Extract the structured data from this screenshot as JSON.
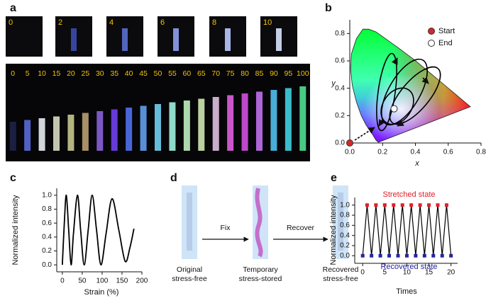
{
  "panels": {
    "labels": [
      "a",
      "b",
      "c",
      "d",
      "e"
    ],
    "a": {
      "top_labels": [
        "0",
        "2",
        "4",
        "6",
        "8",
        "10"
      ],
      "bottom_labels": [
        "0",
        "5",
        "10",
        "15",
        "20",
        "25",
        "30",
        "35",
        "40",
        "45",
        "50",
        "55",
        "60",
        "65",
        "70",
        "75",
        "80",
        "85",
        "90",
        "95",
        "100"
      ]
    },
    "d": {
      "arrows": [
        "Fix",
        "Recover"
      ],
      "captions": [
        [
          "Original",
          "stress-free"
        ],
        [
          "Temporary",
          "stress-stored"
        ],
        [
          "Recovered",
          "stress-free"
        ]
      ]
    }
  },
  "chart_data": [
    {
      "type": "scatter",
      "xlabel": "x",
      "ylabel": "y",
      "xlim": [
        0,
        0.8
      ],
      "ylim": [
        0,
        0.9
      ],
      "xticks": [
        {
          "value": 0,
          "label": "0.0"
        },
        0.2,
        0.4,
        0.6,
        0.8
      ],
      "yticks": [
        {
          "value": 0,
          "label": "0.0"
        },
        0.2,
        0.4,
        0.6,
        0.8
      ],
      "legend": "upper right",
      "series": [
        {
          "name": "Start",
          "color": "#d62728",
          "x": [
            0
          ],
          "values": [
            0
          ]
        },
        {
          "name": "End",
          "color": "#ffffff",
          "x": [
            0.27
          ],
          "values": [
            0.25
          ]
        }
      ]
    },
    {
      "type": "line",
      "xlabel": "Strain (%)",
      "ylabel": "Normalized intensity",
      "xlim": [
        -14,
        200
      ],
      "ylim": [
        -0.1,
        1.1
      ],
      "xticks": [
        0,
        50,
        100,
        150,
        200
      ],
      "yticks": [
        {
          "value": 0,
          "label": "0.0"
        },
        0.2,
        0.4,
        0.6,
        0.8,
        {
          "value": 1,
          "label": "1.0"
        }
      ],
      "color": "#000000",
      "x": [
        0,
        5,
        10,
        16,
        22,
        28,
        38,
        46,
        55,
        65,
        75,
        86,
        97,
        110,
        125,
        142,
        158,
        170,
        180
      ],
      "values": [
        0,
        0.6,
        1.0,
        0.5,
        0,
        0.45,
        1.0,
        0.5,
        0,
        0.5,
        1.0,
        0.5,
        0,
        0.45,
        0.95,
        0.5,
        0.05,
        0.25,
        0.52
      ]
    },
    {
      "type": "zigzag",
      "xlabel": "Times",
      "ylabel": "Normalized intensity",
      "xlim": [
        -1.8,
        21.5
      ],
      "ylim": [
        -0.15,
        1.15
      ],
      "xticks": [
        0,
        5,
        10,
        15,
        20
      ],
      "yticks": [
        {
          "value": 0,
          "label": "0.0"
        },
        0.2,
        0.4,
        0.6,
        0.8,
        {
          "value": 1,
          "label": "1.0"
        }
      ],
      "line_color": "#000000",
      "series": [
        {
          "name": "Stretched state",
          "color": "#e0202a",
          "x": [
            1,
            3,
            5,
            7,
            9,
            11,
            13,
            15,
            17,
            19
          ],
          "values": [
            1,
            1,
            1,
            1,
            1,
            1,
            1,
            1,
            1,
            1
          ]
        },
        {
          "name": "Recovered state",
          "color": "#26269a",
          "x": [
            0,
            2,
            4,
            6,
            8,
            10,
            12,
            14,
            16,
            18,
            20
          ],
          "values": [
            0,
            0,
            0,
            0,
            0,
            0,
            0,
            0,
            0,
            0,
            0
          ]
        }
      ]
    }
  ]
}
